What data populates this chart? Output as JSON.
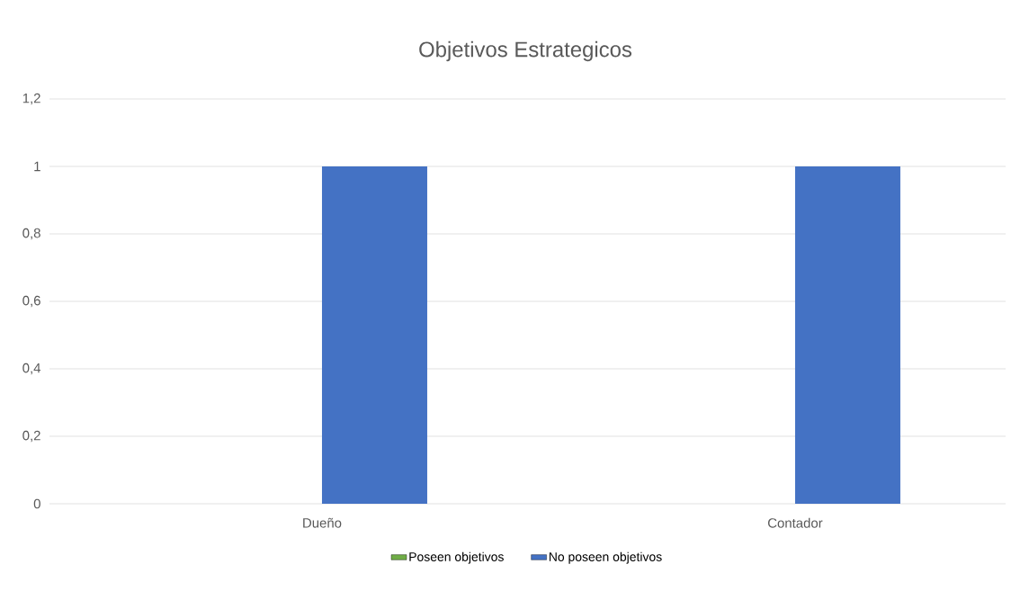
{
  "chart_data": {
    "type": "bar",
    "title": "Objetivos Estrategicos",
    "categories": [
      "Dueño",
      "Contador"
    ],
    "series": [
      {
        "name": "Poseen objetivos",
        "color": "#70ad47",
        "values": [
          0,
          0
        ]
      },
      {
        "name": "No poseen objetivos",
        "color": "#4472c4",
        "values": [
          1,
          1
        ]
      }
    ],
    "ylim": [
      0,
      1.2
    ],
    "yticks": [
      0,
      {
        "value": 0.2,
        "label": "0,2"
      },
      {
        "value": 0.4,
        "label": "0,4"
      },
      {
        "value": 0.6,
        "label": "0,6"
      },
      {
        "value": 0.8,
        "label": "0,8"
      },
      1,
      {
        "value": 1.2,
        "label": "1,2"
      }
    ],
    "grid": "y",
    "legend": "bottom"
  }
}
